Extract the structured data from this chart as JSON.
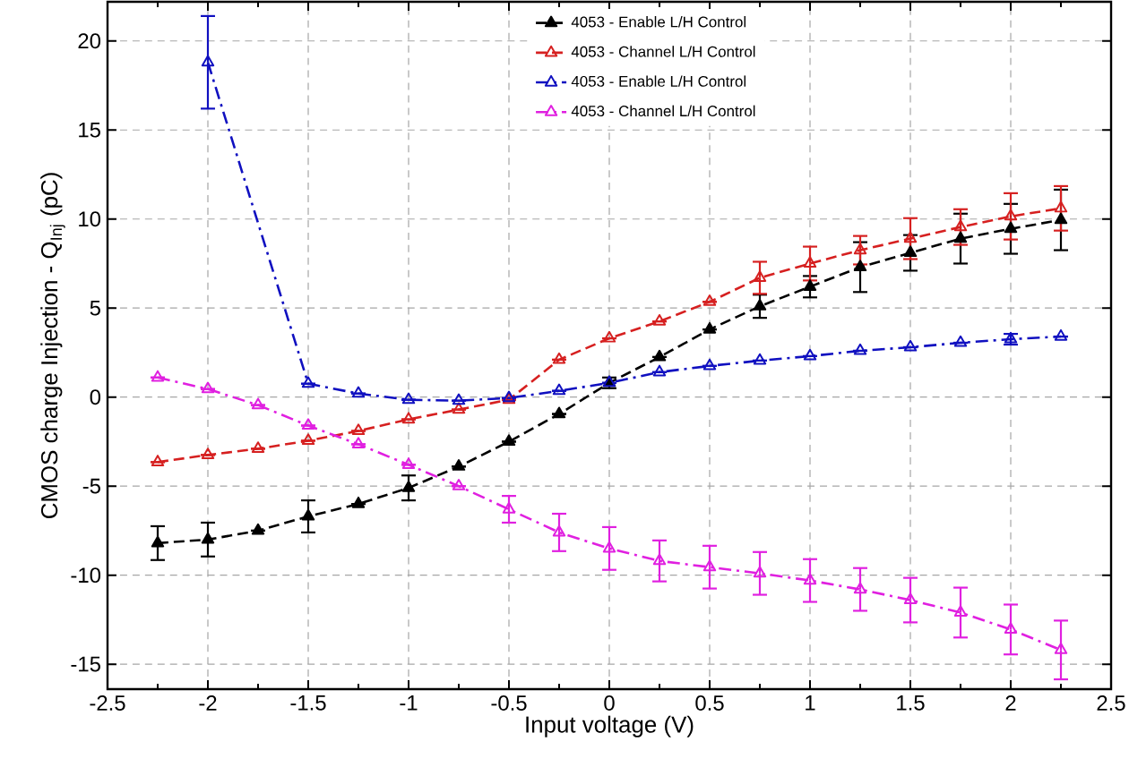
{
  "chart_data": {
    "type": "line",
    "xlabel": "Input voltage (V)",
    "ylabel": "CMOS charge Injection - Q$_{Inj}$ (pC)",
    "x": [
      -2.25,
      -2,
      -1.75,
      -1.5,
      -1.25,
      -1,
      -0.75,
      -0.5,
      -0.25,
      0,
      0.25,
      0.5,
      0.75,
      1,
      1.25,
      1.5,
      1.75,
      2,
      2.25
    ],
    "xlim": [
      -2.5,
      2.5
    ],
    "xticks": [
      -2.5,
      -2,
      -1.5,
      -1,
      -0.5,
      0,
      0.5,
      1,
      1.5,
      2,
      2.5
    ],
    "ylim": [
      -16.4,
      22.2
    ],
    "yticks": [
      -15,
      -10,
      -5,
      0,
      5,
      10,
      15,
      20
    ],
    "grid": true,
    "legend": "top",
    "marker": "triangle",
    "series": [
      {
        "name": "4053 - Enable L/H Control",
        "color": "#000000",
        "line_style": "dashed",
        "marker": "triangle filled",
        "values": [
          -8.2,
          -8.0,
          -7.5,
          -6.7,
          -6.0,
          -5.1,
          -3.9,
          -2.5,
          -0.95,
          0.8,
          2.25,
          3.8,
          5.1,
          6.2,
          7.3,
          8.1,
          8.9,
          9.45,
          9.95
        ],
        "errors": [
          0.95,
          0.95,
          null,
          0.9,
          null,
          0.7,
          null,
          null,
          null,
          0.3,
          null,
          null,
          0.65,
          0.6,
          1.4,
          1.0,
          1.4,
          1.4,
          1.7
        ]
      },
      {
        "name": "4053 - Channel L/H Control",
        "color": "#d62020",
        "line_style": "dashed",
        "values": [
          -3.65,
          -3.25,
          -2.9,
          -2.45,
          -1.9,
          -1.25,
          -0.7,
          -0.15,
          2.1,
          3.3,
          4.25,
          5.35,
          6.7,
          7.5,
          8.25,
          8.9,
          9.55,
          10.15,
          10.6
        ],
        "errors": [
          null,
          null,
          null,
          null,
          null,
          null,
          null,
          null,
          null,
          null,
          null,
          null,
          0.9,
          0.95,
          0.8,
          1.15,
          1.0,
          1.3,
          1.25
        ]
      },
      {
        "name": "4053 -  Enable L/H Control",
        "color": "#1010c0",
        "line_style": "dashdot",
        "values": [
          null,
          18.8,
          null,
          0.75,
          0.2,
          -0.15,
          -0.2,
          -0.05,
          0.35,
          0.8,
          1.4,
          1.75,
          2.05,
          2.3,
          2.6,
          2.8,
          3.05,
          3.25,
          3.4
        ],
        "errors": [
          null,
          2.6,
          null,
          null,
          null,
          null,
          null,
          null,
          null,
          null,
          null,
          null,
          null,
          null,
          null,
          null,
          null,
          0.3,
          null
        ]
      },
      {
        "name": "4053 -  Channel L/H Control",
        "color": "#e020e0",
        "line_style": "dashdot",
        "values": [
          1.1,
          0.45,
          -0.45,
          -1.6,
          -2.65,
          -3.8,
          -5.0,
          -6.3,
          -7.6,
          -8.5,
          -9.2,
          -9.55,
          -9.9,
          -10.3,
          -10.8,
          -11.4,
          -12.1,
          -13.05,
          -14.2
        ],
        "errors": [
          null,
          null,
          null,
          null,
          null,
          null,
          null,
          0.75,
          1.05,
          1.2,
          1.15,
          1.2,
          1.2,
          1.2,
          1.2,
          1.25,
          1.4,
          1.4,
          1.65
        ]
      }
    ]
  }
}
